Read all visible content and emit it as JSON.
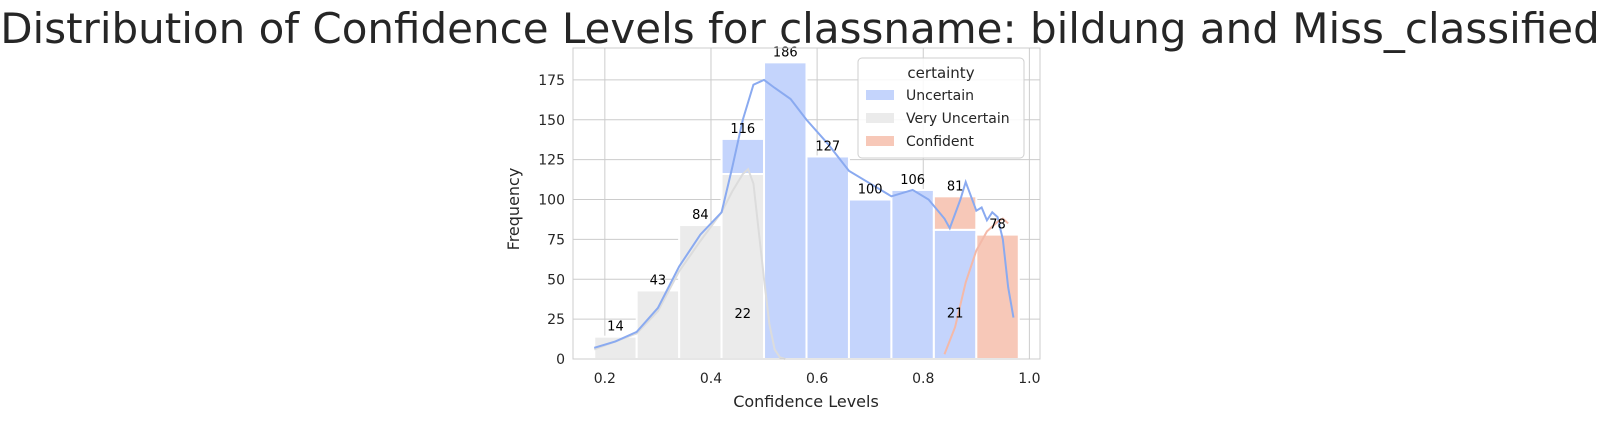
{
  "chart_data": {
    "type": "bar",
    "title": "Distribution of Confidence Levels for classname: bildung and Miss_classified",
    "xlabel": "Confidence Levels",
    "ylabel": "Frequency",
    "xlim": [
      0.14,
      1.02
    ],
    "ylim": [
      0,
      195
    ],
    "xticks": [
      "0.2",
      "0.4",
      "0.6",
      "0.8",
      "1.0"
    ],
    "yticks": [
      "0",
      "25",
      "50",
      "75",
      "100",
      "125",
      "150",
      "175"
    ],
    "grid": true,
    "stacked": true,
    "legend": {
      "title": "certainty",
      "position": "top-right"
    },
    "bins": [
      {
        "left": 0.18,
        "right": 0.26
      },
      {
        "left": 0.26,
        "right": 0.34
      },
      {
        "left": 0.34,
        "right": 0.42
      },
      {
        "left": 0.42,
        "right": 0.5
      },
      {
        "left": 0.5,
        "right": 0.58
      },
      {
        "left": 0.58,
        "right": 0.66
      },
      {
        "left": 0.66,
        "right": 0.74
      },
      {
        "left": 0.74,
        "right": 0.82
      },
      {
        "left": 0.82,
        "right": 0.9
      },
      {
        "left": 0.9,
        "right": 0.98
      }
    ],
    "series": [
      {
        "name": "Very Uncertain",
        "color": "#ebebeb",
        "values": [
          14,
          43,
          84,
          116,
          0,
          0,
          0,
          0,
          0,
          0
        ],
        "kde": [
          [
            0.18,
            6
          ],
          [
            0.22,
            11
          ],
          [
            0.26,
            16
          ],
          [
            0.3,
            30
          ],
          [
            0.34,
            55
          ],
          [
            0.38,
            74
          ],
          [
            0.42,
            92
          ],
          [
            0.44,
            105
          ],
          [
            0.46,
            116
          ],
          [
            0.47,
            119
          ],
          [
            0.48,
            110
          ],
          [
            0.49,
            80
          ],
          [
            0.5,
            50
          ],
          [
            0.51,
            22
          ],
          [
            0.52,
            6
          ],
          [
            0.53,
            1
          ],
          [
            0.54,
            0
          ]
        ]
      },
      {
        "name": "Uncertain",
        "color": "#c4d4fc",
        "values": [
          0,
          0,
          0,
          22,
          186,
          127,
          100,
          106,
          81,
          0
        ],
        "kde": [
          [
            0.18,
            7
          ],
          [
            0.22,
            11
          ],
          [
            0.26,
            17
          ],
          [
            0.3,
            32
          ],
          [
            0.34,
            58
          ],
          [
            0.38,
            78
          ],
          [
            0.42,
            92
          ],
          [
            0.44,
            120
          ],
          [
            0.46,
            150
          ],
          [
            0.48,
            172
          ],
          [
            0.5,
            175
          ],
          [
            0.52,
            170
          ],
          [
            0.55,
            163
          ],
          [
            0.58,
            150
          ],
          [
            0.62,
            135
          ],
          [
            0.66,
            118
          ],
          [
            0.7,
            110
          ],
          [
            0.74,
            102
          ],
          [
            0.78,
            106
          ],
          [
            0.81,
            100
          ],
          [
            0.84,
            88
          ],
          [
            0.85,
            82
          ],
          [
            0.87,
            100
          ],
          [
            0.88,
            111
          ],
          [
            0.89,
            102
          ],
          [
            0.9,
            93
          ],
          [
            0.91,
            95
          ],
          [
            0.92,
            87
          ],
          [
            0.93,
            92
          ],
          [
            0.94,
            89
          ],
          [
            0.95,
            75
          ],
          [
            0.96,
            45
          ],
          [
            0.97,
            26
          ]
        ]
      },
      {
        "name": "Confident",
        "color": "#f7c8b8",
        "values": [
          0,
          0,
          0,
          0,
          0,
          0,
          0,
          0,
          21,
          78
        ],
        "kde": [
          [
            0.84,
            3
          ],
          [
            0.86,
            20
          ],
          [
            0.88,
            48
          ],
          [
            0.9,
            68
          ],
          [
            0.92,
            80
          ],
          [
            0.94,
            86
          ],
          [
            0.95,
            88
          ],
          [
            0.96,
            85
          ]
        ]
      }
    ],
    "bar_labels": [
      {
        "bin": 0,
        "text": "14"
      },
      {
        "bin": 1,
        "text": "43"
      },
      {
        "bin": 2,
        "text": "84"
      },
      {
        "bin": 3,
        "text": "116"
      },
      {
        "bin": 3,
        "text": "22",
        "series": "Uncertain"
      },
      {
        "bin": 4,
        "text": "186"
      },
      {
        "bin": 5,
        "text": "127"
      },
      {
        "bin": 6,
        "text": "100"
      },
      {
        "bin": 7,
        "text": "106"
      },
      {
        "bin": 8,
        "text": "81"
      },
      {
        "bin": 8,
        "text": "21",
        "series": "Confident"
      },
      {
        "bin": 9,
        "text": "78"
      }
    ],
    "legend_entries": [
      {
        "name": "Uncertain",
        "color": "#c4d4fc"
      },
      {
        "name": "Very Uncertain",
        "color": "#ebebeb"
      },
      {
        "name": "Confident",
        "color": "#f7c8b8"
      }
    ],
    "colors": {
      "uncertain_line": "#8aaaf0",
      "very_uncertain_line": "#dcdcdc",
      "confident_line": "#f4b9a8",
      "grid": "#cccccc",
      "text": "#262626"
    }
  }
}
